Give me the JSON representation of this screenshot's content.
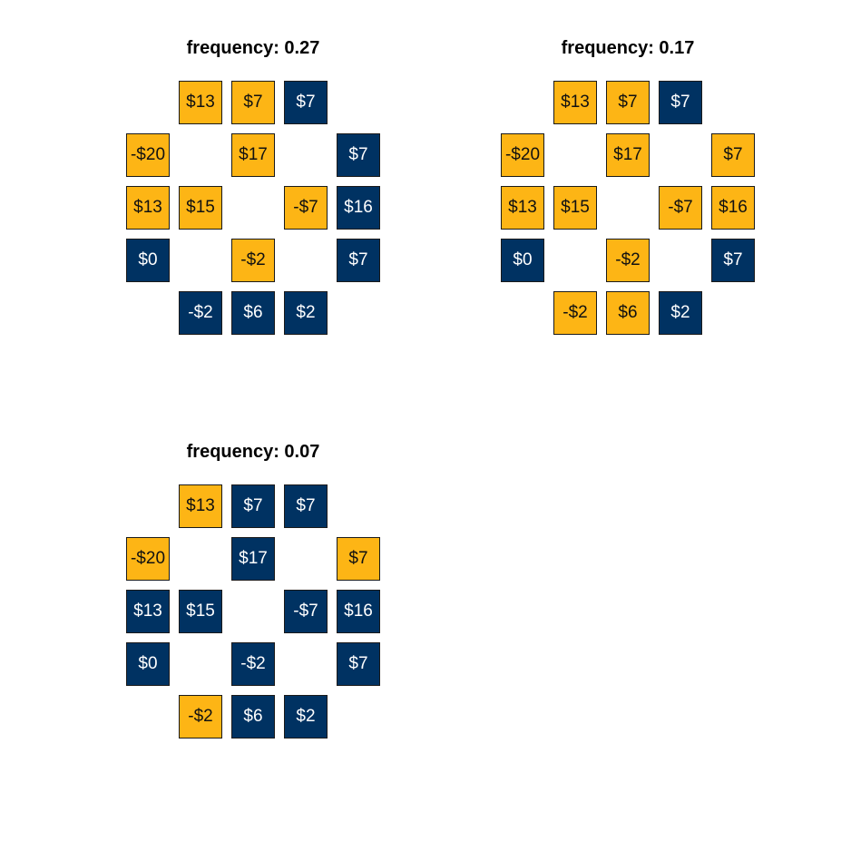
{
  "colors": {
    "gold": "#FDB515",
    "navy": "#003262"
  },
  "panels": [
    {
      "title": "frequency: 0.27",
      "tiles": [
        {
          "label": "$13",
          "color": "gold",
          "row": 0,
          "col": 1
        },
        {
          "label": "$7",
          "color": "gold",
          "row": 0,
          "col": 2
        },
        {
          "label": "$7",
          "color": "navy",
          "row": 0,
          "col": 3
        },
        {
          "label": "-$20",
          "color": "gold",
          "row": 1,
          "col": 0
        },
        {
          "label": "$17",
          "color": "gold",
          "row": 1,
          "col": 2
        },
        {
          "label": "$7",
          "color": "navy",
          "row": 1,
          "col": 4
        },
        {
          "label": "$13",
          "color": "gold",
          "row": 2,
          "col": 0
        },
        {
          "label": "$15",
          "color": "gold",
          "row": 2,
          "col": 1
        },
        {
          "label": "-$7",
          "color": "gold",
          "row": 2,
          "col": 3
        },
        {
          "label": "$16",
          "color": "navy",
          "row": 2,
          "col": 4
        },
        {
          "label": "$0",
          "color": "navy",
          "row": 3,
          "col": 0
        },
        {
          "label": "-$2",
          "color": "gold",
          "row": 3,
          "col": 2
        },
        {
          "label": "$7",
          "color": "navy",
          "row": 3,
          "col": 4
        },
        {
          "label": "-$2",
          "color": "navy",
          "row": 4,
          "col": 1
        },
        {
          "label": "$6",
          "color": "navy",
          "row": 4,
          "col": 2
        },
        {
          "label": "$2",
          "color": "navy",
          "row": 4,
          "col": 3
        }
      ]
    },
    {
      "title": "frequency: 0.17",
      "tiles": [
        {
          "label": "$13",
          "color": "gold",
          "row": 0,
          "col": 1
        },
        {
          "label": "$7",
          "color": "gold",
          "row": 0,
          "col": 2
        },
        {
          "label": "$7",
          "color": "navy",
          "row": 0,
          "col": 3
        },
        {
          "label": "-$20",
          "color": "gold",
          "row": 1,
          "col": 0
        },
        {
          "label": "$17",
          "color": "gold",
          "row": 1,
          "col": 2
        },
        {
          "label": "$7",
          "color": "gold",
          "row": 1,
          "col": 4
        },
        {
          "label": "$13",
          "color": "gold",
          "row": 2,
          "col": 0
        },
        {
          "label": "$15",
          "color": "gold",
          "row": 2,
          "col": 1
        },
        {
          "label": "-$7",
          "color": "gold",
          "row": 2,
          "col": 3
        },
        {
          "label": "$16",
          "color": "gold",
          "row": 2,
          "col": 4
        },
        {
          "label": "$0",
          "color": "navy",
          "row": 3,
          "col": 0
        },
        {
          "label": "-$2",
          "color": "gold",
          "row": 3,
          "col": 2
        },
        {
          "label": "$7",
          "color": "navy",
          "row": 3,
          "col": 4
        },
        {
          "label": "-$2",
          "color": "gold",
          "row": 4,
          "col": 1
        },
        {
          "label": "$6",
          "color": "gold",
          "row": 4,
          "col": 2
        },
        {
          "label": "$2",
          "color": "navy",
          "row": 4,
          "col": 3
        }
      ]
    },
    {
      "title": "frequency: 0.07",
      "tiles": [
        {
          "label": "$13",
          "color": "gold",
          "row": 0,
          "col": 1
        },
        {
          "label": "$7",
          "color": "navy",
          "row": 0,
          "col": 2
        },
        {
          "label": "$7",
          "color": "navy",
          "row": 0,
          "col": 3
        },
        {
          "label": "-$20",
          "color": "gold",
          "row": 1,
          "col": 0
        },
        {
          "label": "$17",
          "color": "navy",
          "row": 1,
          "col": 2
        },
        {
          "label": "$7",
          "color": "gold",
          "row": 1,
          "col": 4
        },
        {
          "label": "$13",
          "color": "navy",
          "row": 2,
          "col": 0
        },
        {
          "label": "$15",
          "color": "navy",
          "row": 2,
          "col": 1
        },
        {
          "label": "-$7",
          "color": "navy",
          "row": 2,
          "col": 3
        },
        {
          "label": "$16",
          "color": "navy",
          "row": 2,
          "col": 4
        },
        {
          "label": "$0",
          "color": "navy",
          "row": 3,
          "col": 0
        },
        {
          "label": "-$2",
          "color": "navy",
          "row": 3,
          "col": 2
        },
        {
          "label": "$7",
          "color": "navy",
          "row": 3,
          "col": 4
        },
        {
          "label": "-$2",
          "color": "gold",
          "row": 4,
          "col": 1
        },
        {
          "label": "$6",
          "color": "navy",
          "row": 4,
          "col": 2
        },
        {
          "label": "$2",
          "color": "navy",
          "row": 4,
          "col": 3
        }
      ]
    }
  ]
}
